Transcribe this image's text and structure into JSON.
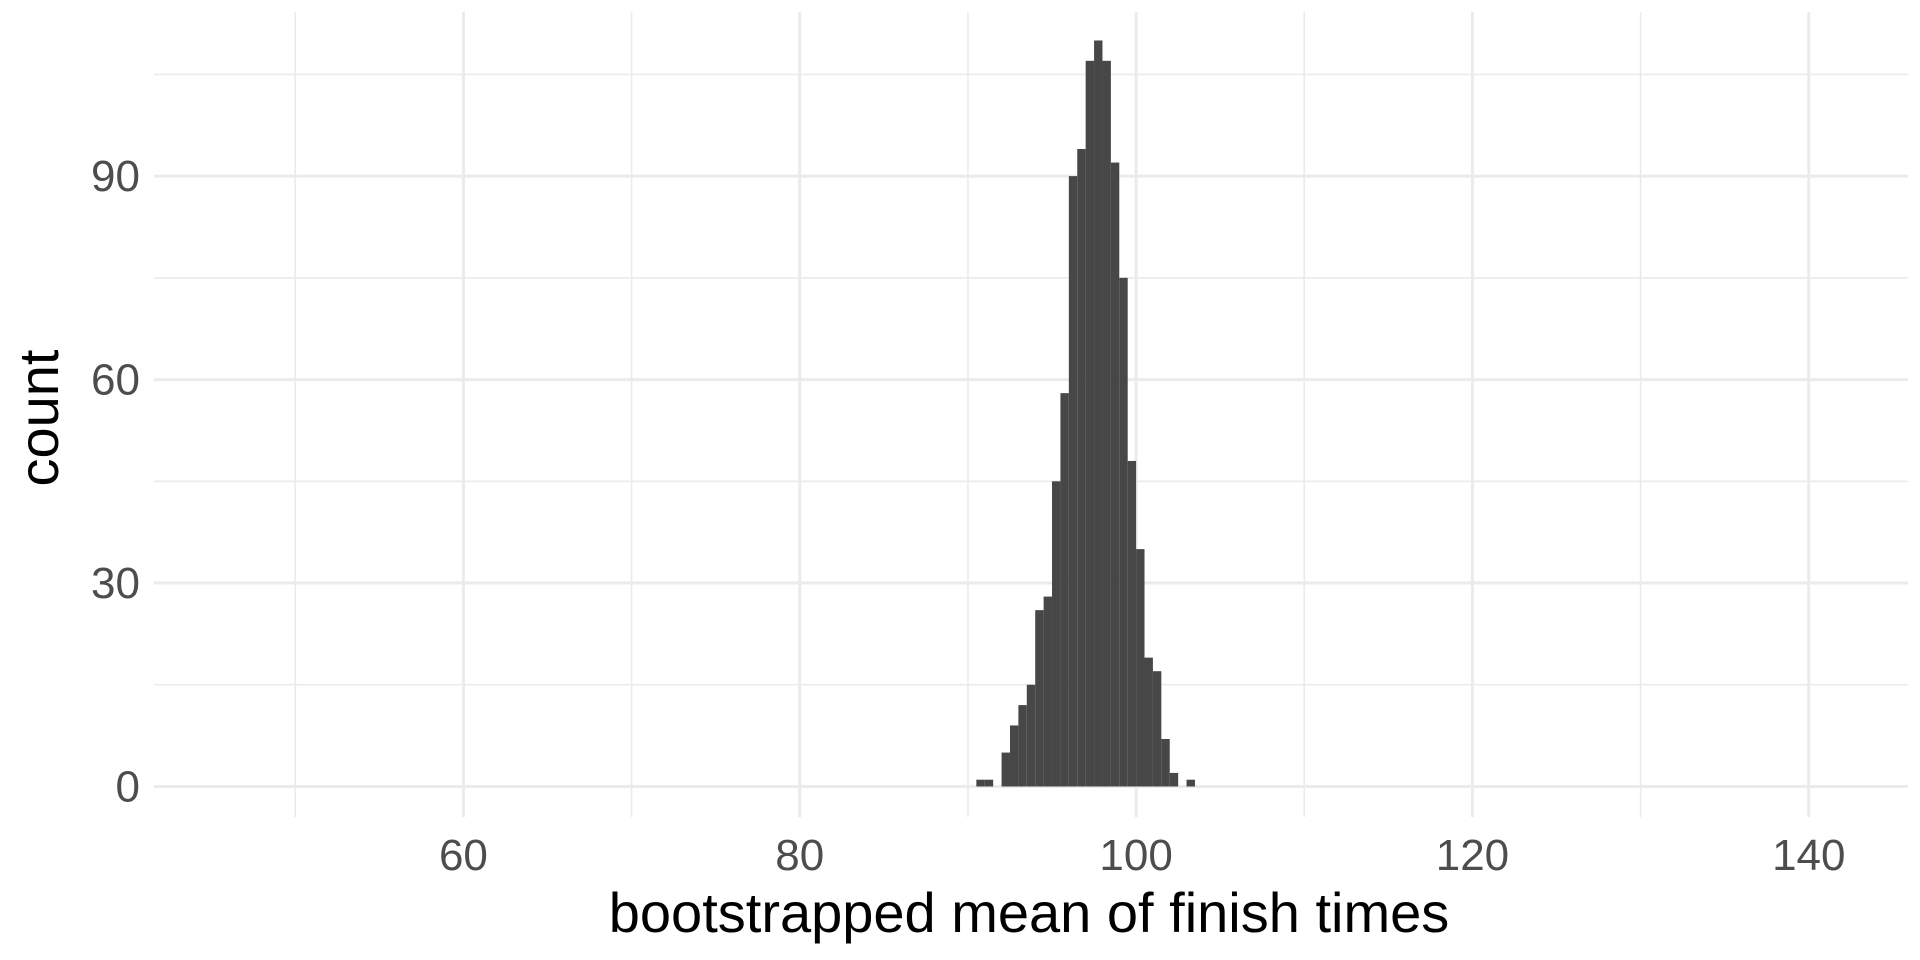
{
  "chart_data": {
    "type": "bar",
    "subtype": "histogram",
    "title": "",
    "xlabel": "bootstrapped mean of finish times",
    "ylabel": "count",
    "xlim": [
      41.6,
      145.9
    ],
    "ylim": [
      -4.5,
      114.2
    ],
    "x_ticks": [
      60,
      80,
      100,
      120,
      140
    ],
    "x_minor_ticks": [
      50,
      70,
      90,
      110,
      130
    ],
    "y_ticks": [
      0,
      30,
      60,
      90
    ],
    "y_minor_ticks": [
      15,
      45,
      75,
      105
    ],
    "grid": true,
    "bar_color": "#474747",
    "grid_color": "#ebebeb",
    "bin_width": 0.5,
    "bins": [
      {
        "x0": 90.5,
        "x1": 91.0,
        "count": 1
      },
      {
        "x0": 91.0,
        "x1": 91.5,
        "count": 1
      },
      {
        "x0": 92.0,
        "x1": 92.5,
        "count": 5
      },
      {
        "x0": 92.5,
        "x1": 93.0,
        "count": 9
      },
      {
        "x0": 93.0,
        "x1": 93.5,
        "count": 12
      },
      {
        "x0": 93.5,
        "x1": 94.0,
        "count": 15
      },
      {
        "x0": 94.0,
        "x1": 94.5,
        "count": 26
      },
      {
        "x0": 94.5,
        "x1": 95.0,
        "count": 28
      },
      {
        "x0": 95.0,
        "x1": 95.5,
        "count": 45
      },
      {
        "x0": 95.5,
        "x1": 96.0,
        "count": 58
      },
      {
        "x0": 96.0,
        "x1": 96.5,
        "count": 90
      },
      {
        "x0": 96.5,
        "x1": 97.0,
        "count": 94
      },
      {
        "x0": 97.0,
        "x1": 97.5,
        "count": 107
      },
      {
        "x0": 97.5,
        "x1": 98.0,
        "count": 110
      },
      {
        "x0": 98.0,
        "x1": 98.5,
        "count": 107
      },
      {
        "x0": 98.5,
        "x1": 99.0,
        "count": 92
      },
      {
        "x0": 99.0,
        "x1": 99.5,
        "count": 75
      },
      {
        "x0": 99.5,
        "x1": 100.0,
        "count": 48
      },
      {
        "x0": 100.0,
        "x1": 100.5,
        "count": 35
      },
      {
        "x0": 100.5,
        "x1": 101.0,
        "count": 19
      },
      {
        "x0": 101.0,
        "x1": 101.5,
        "count": 17
      },
      {
        "x0": 101.5,
        "x1": 102.0,
        "count": 7
      },
      {
        "x0": 102.0,
        "x1": 102.5,
        "count": 2
      },
      {
        "x0": 103.0,
        "x1": 103.5,
        "count": 1
      }
    ]
  }
}
